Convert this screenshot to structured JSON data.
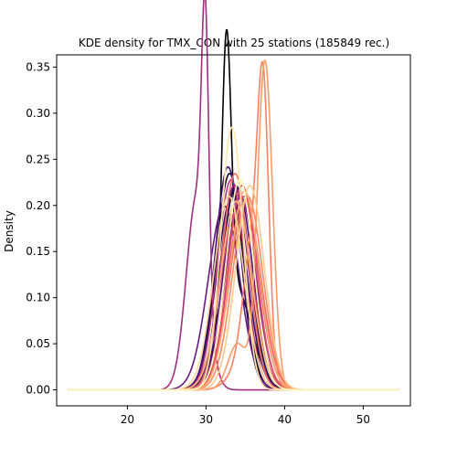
{
  "chart_data": {
    "type": "line",
    "title": "KDE density for TMX_CON with 25 stations (185849 rec.)",
    "xlabel": "",
    "ylabel": "Density",
    "xlim": [
      11.0,
      56.0
    ],
    "ylim": [
      -0.0173,
      0.3633
    ],
    "grid": false,
    "legend": "none",
    "x_range_of_curves": [
      12.5,
      54.5
    ],
    "x_ticks": [
      20,
      30,
      40,
      50
    ],
    "x_tick_labels": [
      "20",
      "30",
      "40",
      "50"
    ],
    "y_ticks": [
      0.0,
      0.05,
      0.1,
      0.15,
      0.2,
      0.25,
      0.3,
      0.35
    ],
    "y_tick_labels": [
      "0.00",
      "0.05",
      "0.10",
      "0.15",
      "0.20",
      "0.25",
      "0.30",
      "0.35"
    ],
    "series": [
      {
        "color": "#000004",
        "components": [
          {
            "mu": 32.6,
            "sigma": 0.6,
            "w": 0.45
          },
          {
            "mu": 33.8,
            "sigma": 2.0,
            "w": 0.55
          }
        ]
      },
      {
        "color": "#0b0924",
        "components": [
          {
            "mu": 33.0,
            "sigma": 1.7,
            "w": 1.0
          }
        ]
      },
      {
        "color": "#1c1044",
        "components": [
          {
            "mu": 33.8,
            "sigma": 1.8,
            "w": 1.0
          }
        ]
      },
      {
        "color": "#2f1163",
        "components": [
          {
            "mu": 33.3,
            "sigma": 1.9,
            "w": 1.0
          }
        ]
      },
      {
        "color": "#3b0f70",
        "components": [
          {
            "mu": 32.8,
            "sigma": 1.65,
            "w": 1.0
          }
        ]
      },
      {
        "color": "#51127c",
        "components": [
          {
            "mu": 34.1,
            "sigma": 1.85,
            "w": 1.0
          }
        ]
      },
      {
        "color": "#641a80",
        "components": [
          {
            "mu": 32.3,
            "sigma": 2.0,
            "w": 1.0
          }
        ]
      },
      {
        "color": "#721f81",
        "components": [
          {
            "mu": 33.6,
            "sigma": 1.8,
            "w": 1.0
          }
        ]
      },
      {
        "color": "#8c2981",
        "components": [
          {
            "mu": 34.4,
            "sigma": 1.9,
            "w": 1.0
          }
        ]
      },
      {
        "color": "#9f2f7f",
        "components": [
          {
            "mu": 29.9,
            "sigma": 0.45,
            "w": 0.32
          },
          {
            "mu": 28.8,
            "sigma": 1.3,
            "w": 0.68
          }
        ]
      },
      {
        "color": "#b5367a",
        "components": [
          {
            "mu": 33.2,
            "sigma": 1.75,
            "w": 1.0
          }
        ]
      },
      {
        "color": "#cd4071",
        "components": [
          {
            "mu": 34.8,
            "sigma": 1.9,
            "w": 1.0
          }
        ]
      },
      {
        "color": "#de4968",
        "components": [
          {
            "mu": 33.9,
            "sigma": 2.05,
            "w": 1.0
          }
        ]
      },
      {
        "color": "#e75263",
        "components": [
          {
            "mu": 34.6,
            "sigma": 1.8,
            "w": 1.0
          }
        ]
      },
      {
        "color": "#f1605d",
        "components": [
          {
            "mu": 35.0,
            "sigma": 1.95,
            "w": 1.0
          }
        ]
      },
      {
        "color": "#f7705c",
        "components": [
          {
            "mu": 33.7,
            "sigma": 1.7,
            "w": 1.0
          }
        ]
      },
      {
        "color": "#fa815f",
        "components": [
          {
            "mu": 36.0,
            "sigma": 1.2,
            "w": 0.4
          },
          {
            "mu": 37.3,
            "sigma": 0.7,
            "w": 0.45
          },
          {
            "mu": 35.5,
            "sigma": 2.0,
            "w": 0.15
          }
        ]
      },
      {
        "color": "#fc8961",
        "components": [
          {
            "mu": 35.3,
            "sigma": 1.9,
            "w": 1.0
          }
        ]
      },
      {
        "color": "#fd9a6a",
        "components": [
          {
            "mu": 37.5,
            "sigma": 0.95,
            "w": 0.85
          },
          {
            "mu": 34.0,
            "sigma": 1.2,
            "w": 0.15
          }
        ]
      },
      {
        "color": "#fea973",
        "components": [
          {
            "mu": 34.9,
            "sigma": 1.85,
            "w": 1.0
          }
        ]
      },
      {
        "color": "#feba80",
        "components": [
          {
            "mu": 33.8,
            "sigma": 1.95,
            "w": 1.0
          }
        ]
      },
      {
        "color": "#fec98d",
        "components": [
          {
            "mu": 35.6,
            "sigma": 1.8,
            "w": 1.0
          }
        ]
      },
      {
        "color": "#fed799",
        "components": [
          {
            "mu": 32.9,
            "sigma": 1.9,
            "w": 1.0
          }
        ]
      },
      {
        "color": "#fde7a9",
        "components": [
          {
            "mu": 33.3,
            "sigma": 1.4,
            "w": 1.0
          }
        ]
      },
      {
        "color": "#fcf7b9",
        "components": [
          {
            "mu": 34.3,
            "sigma": 1.75,
            "w": 1.0
          }
        ]
      }
    ]
  }
}
